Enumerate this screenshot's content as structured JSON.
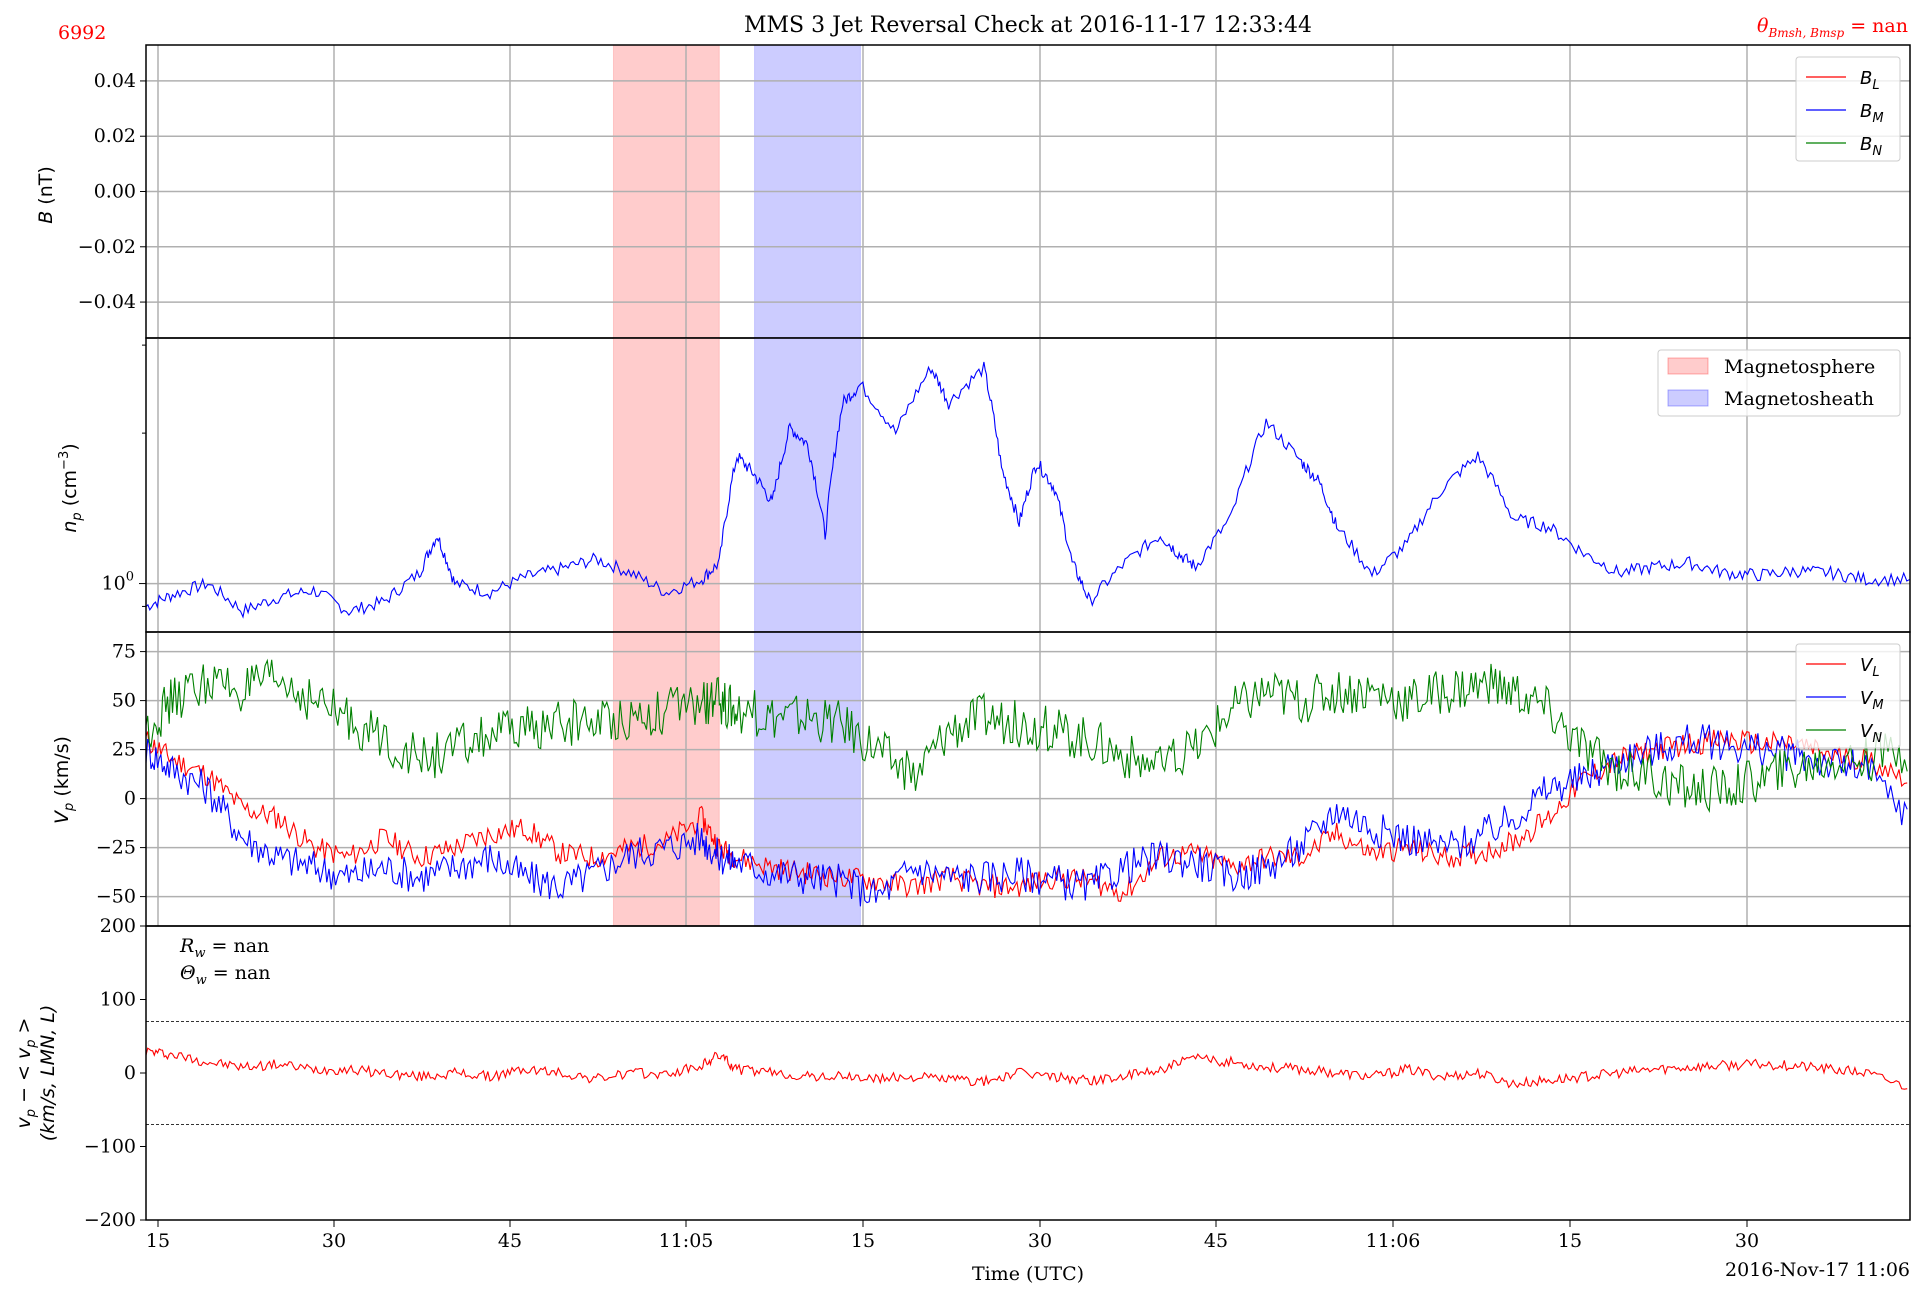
{
  "header": {
    "left_id": "6992",
    "title": "MMS 3 Jet Reversal Check at 2016-11-17 12:33:44",
    "theta_label": "θ",
    "theta_sub": "Bmsh, Bmsp",
    "theta_value": " = nan"
  },
  "x_axis": {
    "label": "Time (UTC)",
    "date_label": "2016-Nov-17 11:06",
    "tick_labels": [
      "15",
      "30",
      "45",
      "11:05",
      "15",
      "30",
      "45",
      "11:06",
      "15",
      "30"
    ]
  },
  "annotations": {
    "rw": " = nan",
    "thetaw": " = nan"
  },
  "colors": {
    "magnetosphere": "#ff9999",
    "magnetosheath": "#9999ff",
    "L": "#ff0000",
    "M": "#0000ff",
    "N": "#008000"
  },
  "chart_data": [
    {
      "type": "line",
      "panel": "magnetic field",
      "ylabel": "B (nT)",
      "ylim": [
        -0.053,
        0.053
      ],
      "yticks": [
        "0.04",
        "0.02",
        "0.00",
        "−0.02",
        "−0.04"
      ],
      "yticks_values": [
        0.04,
        0.02,
        0.0,
        -0.02,
        -0.04
      ],
      "legend": [
        "B_L",
        "B_M",
        "B_N"
      ],
      "legend_placement": "upper right",
      "series": [],
      "grid": true
    },
    {
      "type": "line",
      "panel": "density",
      "ylabel": "n_p (cm^-3)",
      "yscale": "log",
      "ytick_label": "10^0",
      "legend": [
        "Magnetosphere",
        "Magnetosheath"
      ],
      "legend_placement": "upper right",
      "x_range_s": [
        14.5,
        114.5
      ],
      "magnetosphere_interval_s": [
        41,
        47
      ],
      "magnetosheath_interval_s": [
        49,
        55
      ],
      "series": [
        {
          "name": "n_p",
          "color": "#0000ff",
          "x": [
            14.5,
            16,
            18,
            20,
            22,
            24,
            26,
            28,
            30,
            31,
            32,
            34,
            36,
            38,
            40,
            42,
            44,
            46,
            47,
            48,
            49,
            50,
            51,
            52,
            53,
            54,
            55,
            57,
            59,
            60,
            62,
            63,
            64,
            65,
            66,
            67,
            68,
            70,
            72,
            73,
            74,
            76,
            78,
            80,
            81,
            82,
            84,
            86,
            88,
            90,
            92,
            94,
            96,
            98,
            100,
            102,
            104,
            106,
            108,
            110,
            112,
            114.5
          ],
          "y": [
            0.9,
            0.95,
            1.0,
            0.88,
            0.94,
            0.97,
            0.88,
            0.92,
            1.05,
            1.25,
            1.0,
            0.96,
            1.03,
            1.07,
            1.12,
            1.05,
            0.96,
            1.02,
            1.1,
            1.8,
            1.65,
            1.45,
            2.05,
            1.9,
            1.25,
            2.3,
            2.5,
            2.0,
            2.7,
            2.3,
            2.7,
            1.7,
            1.32,
            1.75,
            1.55,
            1.1,
            0.92,
            1.1,
            1.25,
            1.15,
            1.08,
            1.35,
            2.1,
            1.75,
            1.6,
            1.3,
            1.04,
            1.2,
            1.55,
            1.8,
            1.35,
            1.3,
            1.15,
            1.05,
            1.08,
            1.1,
            1.05,
            1.04,
            1.06,
            1.05,
            1.02,
            1.02
          ]
        }
      ],
      "grid": true
    },
    {
      "type": "line",
      "panel": "velocity",
      "ylabel": "V_p (km/s)",
      "ylim": [
        -65,
        85
      ],
      "yticks": [
        "75",
        "50",
        "25",
        "0",
        "−25",
        "−50"
      ],
      "yticks_values": [
        75,
        50,
        25,
        0,
        -25,
        -50
      ],
      "legend": [
        "V_L",
        "V_M",
        "V_N"
      ],
      "legend_placement": "upper right",
      "series": [
        {
          "name": "V_L",
          "color": "#ff0000",
          "x": [
            14.5,
            16,
            18,
            20,
            22,
            24,
            26,
            28,
            30,
            32,
            34,
            36,
            38,
            40,
            42,
            44,
            46,
            47,
            48,
            50,
            52,
            54,
            56,
            58,
            60,
            62,
            64,
            66,
            68,
            70,
            72,
            74,
            76,
            78,
            80,
            82,
            84,
            86,
            88,
            90,
            92,
            94,
            96,
            98,
            100,
            102,
            104,
            106,
            108,
            110,
            112,
            114.5
          ],
          "y": [
            30,
            20,
            12,
            -5,
            -10,
            -25,
            -30,
            -20,
            -30,
            -25,
            -18,
            -15,
            -28,
            -30,
            -25,
            -22,
            -10,
            -25,
            -30,
            -35,
            -38,
            -40,
            -42,
            -45,
            -40,
            -45,
            -45,
            -40,
            -42,
            -48,
            -30,
            -28,
            -35,
            -30,
            -30,
            -18,
            -28,
            -25,
            -30,
            -28,
            -22,
            -10,
            10,
            20,
            25,
            28,
            30,
            28,
            28,
            22,
            20,
            10
          ]
        },
        {
          "name": "V_M",
          "color": "#0000ff",
          "x": [
            14.5,
            16,
            18,
            20,
            22,
            24,
            26,
            28,
            30,
            32,
            34,
            36,
            38,
            40,
            42,
            44,
            46,
            47,
            48,
            50,
            52,
            54,
            56,
            58,
            60,
            62,
            64,
            66,
            68,
            70,
            72,
            74,
            76,
            78,
            80,
            82,
            84,
            86,
            88,
            90,
            92,
            94,
            96,
            98,
            100,
            102,
            104,
            106,
            108,
            110,
            112,
            114.5
          ],
          "y": [
            25,
            15,
            5,
            -20,
            -30,
            -35,
            -40,
            -35,
            -40,
            -35,
            -30,
            -40,
            -45,
            -38,
            -28,
            -25,
            -20,
            -30,
            -32,
            -38,
            -40,
            -42,
            -50,
            -35,
            -40,
            -40,
            -38,
            -42,
            -45,
            -35,
            -30,
            -32,
            -40,
            -35,
            -25,
            -5,
            -15,
            -20,
            -25,
            -20,
            -10,
            5,
            10,
            20,
            25,
            30,
            28,
            25,
            22,
            18,
            15,
            -10
          ]
        },
        {
          "name": "V_N",
          "color": "#008000",
          "x": [
            14.5,
            16,
            18,
            20,
            22,
            24,
            26,
            28,
            30,
            32,
            34,
            36,
            38,
            40,
            42,
            44,
            46,
            47,
            48,
            50,
            52,
            54,
            56,
            58,
            60,
            62,
            64,
            66,
            68,
            70,
            72,
            74,
            76,
            78,
            80,
            82,
            84,
            86,
            88,
            90,
            92,
            94,
            96,
            98,
            100,
            102,
            104,
            106,
            108,
            110,
            112,
            114.5
          ],
          "y": [
            35,
            50,
            60,
            55,
            60,
            50,
            40,
            30,
            20,
            25,
            32,
            35,
            38,
            40,
            42,
            45,
            48,
            50,
            45,
            42,
            42,
            38,
            25,
            10,
            35,
            42,
            38,
            35,
            30,
            22,
            15,
            25,
            45,
            55,
            50,
            55,
            55,
            50,
            55,
            58,
            55,
            45,
            25,
            15,
            10,
            5,
            5,
            10,
            15,
            20,
            20,
            25
          ]
        }
      ],
      "grid": true
    },
    {
      "type": "line",
      "panel": "velocity deviation",
      "ylabel_line1": "v_p − < v_p >",
      "ylabel_line2": "(km/s, LMN, L)",
      "ylim": [
        -200,
        200
      ],
      "yticks": [
        "200",
        "100",
        "0",
        "−100",
        "−200"
      ],
      "yticks_values": [
        200,
        100,
        0,
        -100,
        -200
      ],
      "threshold_lines": [
        70,
        -70
      ],
      "series": [
        {
          "name": "L",
          "color": "#ff0000",
          "x": [
            14.5,
            16,
            18,
            20,
            22,
            24,
            26,
            28,
            30,
            32,
            34,
            36,
            38,
            40,
            42,
            44,
            46,
            47,
            48,
            50,
            52,
            54,
            56,
            58,
            60,
            62,
            64,
            66,
            68,
            70,
            72,
            74,
            76,
            78,
            80,
            82,
            84,
            86,
            88,
            90,
            92,
            94,
            96,
            98,
            100,
            102,
            104,
            106,
            108,
            110,
            112,
            114.5
          ],
          "y": [
            30,
            25,
            15,
            8,
            12,
            5,
            5,
            0,
            -5,
            0,
            -5,
            5,
            0,
            -8,
            0,
            -2,
            10,
            25,
            5,
            0,
            -5,
            -5,
            -8,
            -5,
            -8,
            -12,
            0,
            -5,
            -10,
            -5,
            5,
            20,
            15,
            8,
            5,
            0,
            -5,
            5,
            -5,
            0,
            -15,
            -10,
            -5,
            0,
            5,
            8,
            10,
            12,
            10,
            5,
            0,
            -20
          ]
        }
      ],
      "grid": false
    }
  ]
}
